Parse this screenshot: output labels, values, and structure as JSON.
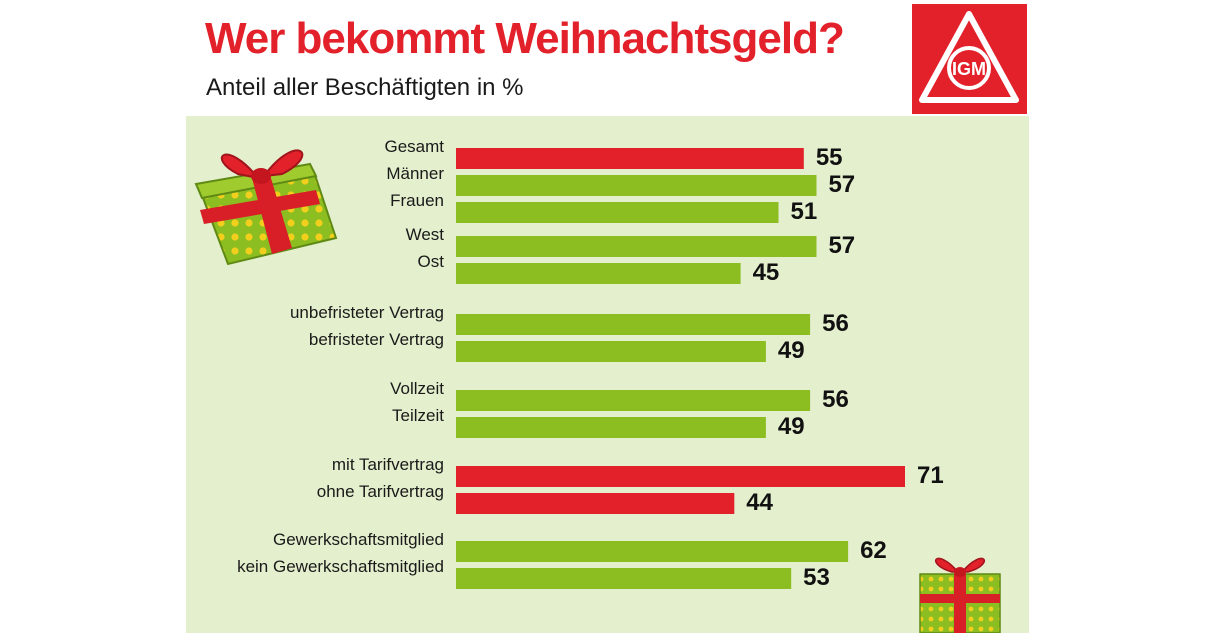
{
  "header": {
    "title": "Wer bekommt Weihnachtsgeld?",
    "subtitle": "Anteil aller Beschäftigten in %"
  },
  "logo": {
    "icon": "ig-metall-logo-icon",
    "letters": "IGM",
    "color": "#e3212b"
  },
  "decorations": [
    "gift-box-icon",
    "gift-box-icon"
  ],
  "colors": {
    "red": "#e3212b",
    "green": "#8cbd21",
    "panel_background": "#e3efcd"
  },
  "chart_data": {
    "type": "bar",
    "orientation": "horizontal",
    "title": "Wer bekommt Weihnachtsgeld?",
    "subtitle": "Anteil aller Beschäftigten in %",
    "xlim": [
      0,
      71
    ],
    "grid": false,
    "categories": [
      "Gesamt",
      "Männer",
      "Frauen",
      "West",
      "Ost",
      "unbefristeter Vertrag",
      "befristeter Vertrag",
      "Vollzeit",
      "Teilzeit",
      "mit Tarifvertrag",
      "ohne Tarifvertrag",
      "Gewerkschaftsmitglied",
      "kein Gewerkschaftsmitglied"
    ],
    "values": [
      55,
      57,
      51,
      57,
      45,
      56,
      49,
      56,
      49,
      71,
      44,
      62,
      53
    ],
    "bar_colors": [
      "red",
      "green",
      "green",
      "green",
      "green",
      "green",
      "green",
      "green",
      "green",
      "red",
      "red",
      "green",
      "green"
    ]
  }
}
